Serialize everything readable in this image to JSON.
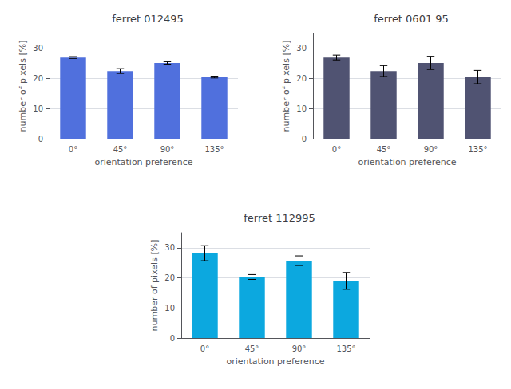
{
  "chart_data": [
    {
      "type": "bar",
      "title": "ferret 012495",
      "categories": [
        "0°",
        "45°",
        "90°",
        "135°"
      ],
      "values": [
        27.0,
        22.5,
        25.2,
        20.5
      ],
      "errors": [
        0.3,
        0.8,
        0.4,
        0.3
      ],
      "xlabel": "orientation preference",
      "ylabel": "number of pixels [%]",
      "ylim": [
        0,
        35
      ],
      "yticks": [
        0,
        10,
        20,
        30
      ]
    },
    {
      "type": "bar",
      "title": "ferret 0601 95",
      "categories": [
        "0°",
        "45°",
        "90°",
        "135°"
      ],
      "values": [
        27.0,
        22.5,
        25.2,
        20.5
      ],
      "errors": [
        0.8,
        1.8,
        2.2,
        2.2
      ],
      "xlabel": "orientation preference",
      "ylabel": "number of pixels [%]",
      "ylim": [
        0,
        35
      ],
      "yticks": [
        0,
        10,
        20,
        30
      ]
    },
    {
      "type": "bar",
      "title": "ferret 112995",
      "categories": [
        "0°",
        "45°",
        "90°",
        "135°"
      ],
      "values": [
        28.2,
        20.3,
        25.7,
        19.0
      ],
      "errors": [
        2.5,
        0.8,
        1.6,
        2.8
      ],
      "xlabel": "orientation preference",
      "ylabel": "number of pixels [%]",
      "ylim": [
        0,
        35
      ],
      "yticks": [
        0,
        10,
        20,
        30
      ]
    }
  ]
}
